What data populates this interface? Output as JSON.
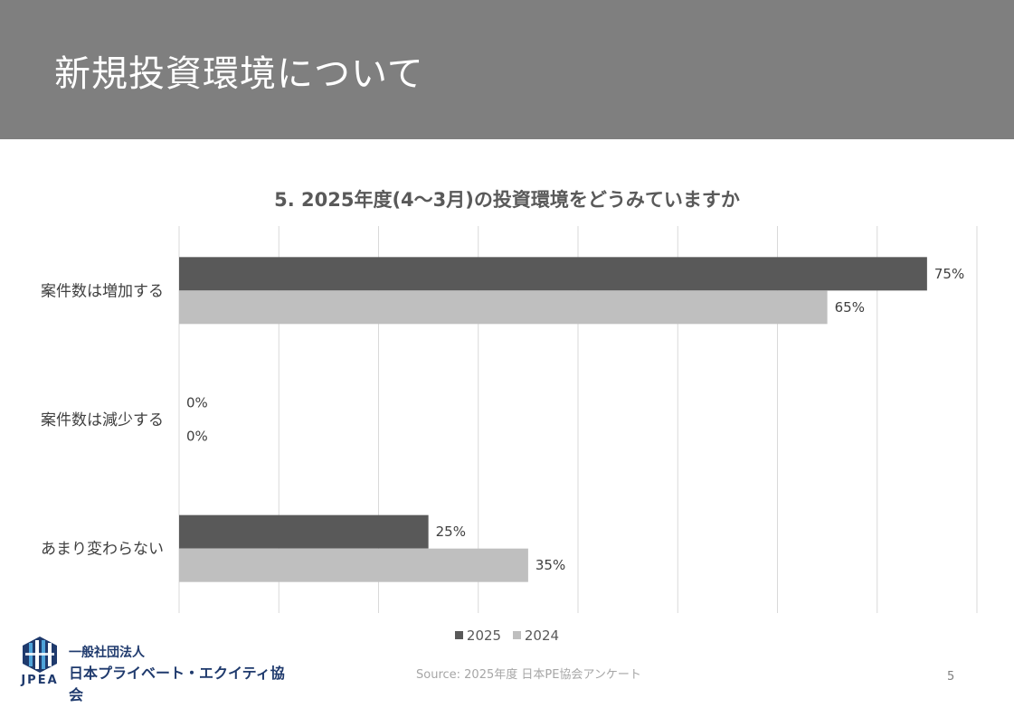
{
  "slide": {
    "title": "新規投資環境について",
    "page_number": "5",
    "source": "Source: 2025年度 日本PE協会アンケート"
  },
  "logo": {
    "abbr": "JPEA",
    "line1": "一般社団法人",
    "line2": "日本プライベート・エクイティ協会",
    "color": "#1f3a6d"
  },
  "chart_data": {
    "type": "bar",
    "orientation": "horizontal",
    "title": "5. 2025年度(4〜3月)の投資環境をどうみていますか",
    "categories": [
      "案件数は増加する",
      "案件数は減少する",
      "あまり変わらない"
    ],
    "series": [
      {
        "name": "2025",
        "values": [
          75,
          0,
          25
        ],
        "labels": [
          "75%",
          "0%",
          "25%"
        ],
        "color": "#595959"
      },
      {
        "name": "2024",
        "values": [
          65,
          0,
          35
        ],
        "labels": [
          "65%",
          "0%",
          "35%"
        ],
        "color": "#bfbfbf"
      }
    ],
    "xlim": [
      0,
      80
    ],
    "grid": true,
    "legend_position": "bottom"
  }
}
